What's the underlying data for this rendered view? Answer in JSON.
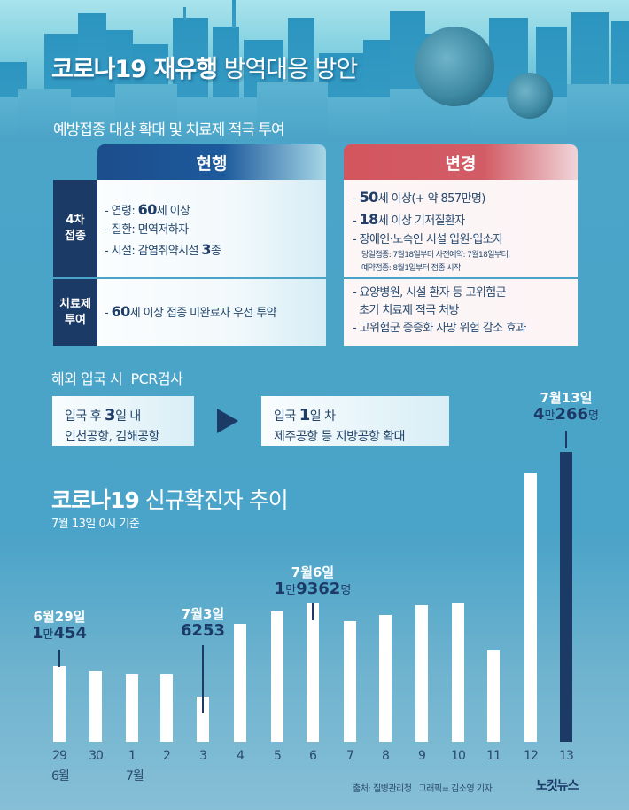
{
  "header": {
    "title_bold": "코로나19 재유행",
    "title_light": "방역대응 방안",
    "subtitle": "예방접종 대상 확대 및 치료제 적극 투여"
  },
  "table": {
    "col_current": "현행",
    "col_changed": "변경",
    "rows": [
      {
        "label_l1": "4차",
        "label_l2": "접종",
        "current": [
          {
            "pre": "- 연령: ",
            "bold": "60",
            "post": "세 이상"
          },
          {
            "pre": "- 질환: 면역저하자",
            "bold": "",
            "post": ""
          },
          {
            "pre": "- 시설: 감염취약시설 ",
            "bold": "3",
            "post": "종"
          }
        ],
        "changed": [
          {
            "pre": "- ",
            "bold": "50",
            "post": "세 이상(+ 약 857만명)"
          },
          {
            "pre": "- ",
            "bold": "18",
            "post": "세 이상 기저질환자"
          },
          {
            "pre": "- 장애인·노숙인 시설 입원·입소자",
            "bold": "",
            "post": ""
          }
        ],
        "changed_notes": [
          "당일접종: 7월18일부터 사전예약: 7월18일부터,",
          "예약접종: 8월1일부터 접종 시작"
        ]
      },
      {
        "label_l1": "치료제",
        "label_l2": "투여",
        "current": [
          {
            "pre": "- ",
            "bold": "60",
            "post": "세 이상 접종 미완료자 우선 투약"
          }
        ],
        "changed": [
          {
            "pre": "- 요양병원, 시설 환자 등 고위험군",
            "bold": "",
            "post": ""
          },
          {
            "pre": "  초기 치료제 적극 처방",
            "bold": "",
            "post": ""
          },
          {
            "pre": "- 고위험군 중증화 사망 위험 감소 효과",
            "bold": "",
            "post": ""
          }
        ]
      }
    ]
  },
  "pcr": {
    "title": "해외 입국 시  PCR검사",
    "before": {
      "l1_pre": "입국 후 ",
      "l1_bold": "3",
      "l1_post": "일 내",
      "l2": "인천공항, 김해공항"
    },
    "after": {
      "l1_pre": "입국 ",
      "l1_bold": "1",
      "l1_post": "일 차",
      "l2": "제주공항 등 지방공항 확대"
    }
  },
  "chart_title_bold": "코로나19",
  "chart_title_light": "신규확진자 추이",
  "chart_subtitle": "7월 13일 0시 기준",
  "month_labels": {
    "june": "6월",
    "july": "7월"
  },
  "annotations": {
    "jun29": {
      "date": "6월29일",
      "v_bold1": "1",
      "v_unit": "만",
      "v_bold2": "454",
      "v_suffix": ""
    },
    "jul3": {
      "date": "7월3일",
      "v_bold1": "6253",
      "v_unit": "",
      "v_bold2": "",
      "v_suffix": ""
    },
    "jul6": {
      "date": "7월6일",
      "v_bold1": "1",
      "v_unit": "만",
      "v_bold2": "9362",
      "v_suffix": "명"
    },
    "jul13": {
      "date": "7월13일",
      "v_bold1": "4",
      "v_unit": "만",
      "v_bold2": "266",
      "v_suffix": "명"
    }
  },
  "footer": {
    "source": "출처: 질병관리청   그래픽= 김소영 기자",
    "logo": "노컷뉴스"
  },
  "colors": {
    "navy": "#1c3a66",
    "bg": "#4aa3c8",
    "red_header": "#d3555e",
    "blue_header": "#1c4d8c"
  },
  "chart_data": {
    "type": "bar",
    "title": "코로나19 신규확진자 추이",
    "subtitle": "7월 13일 0시 기준",
    "xlabel": "",
    "ylabel": "",
    "categories": [
      "29",
      "30",
      "1",
      "2",
      "3",
      "4",
      "5",
      "6",
      "7",
      "8",
      "9",
      "10",
      "11",
      "12",
      "13"
    ],
    "category_months": {
      "29": "6월",
      "1": "7월"
    },
    "values": [
      10454,
      9900,
      9300,
      9300,
      6253,
      16400,
      18100,
      19362,
      16800,
      17600,
      19000,
      19300,
      12700,
      37300,
      40266
    ],
    "highlight_index": 14,
    "labeled_points": [
      {
        "category": "6월29일",
        "value": 10454
      },
      {
        "category": "7월3일",
        "value": 6253
      },
      {
        "category": "7월6일",
        "value": 19362
      },
      {
        "category": "7월13일",
        "value": 40266
      }
    ],
    "grid": false,
    "legend": "none"
  }
}
